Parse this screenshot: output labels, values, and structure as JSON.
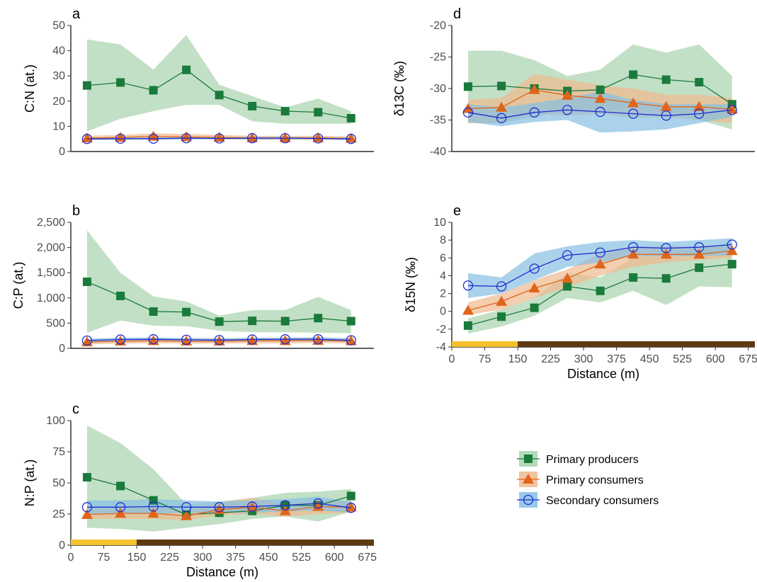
{
  "colors": {
    "producers": "#1a7a3c",
    "producers_band": "#a8d3ad",
    "consumers": "#e0651a",
    "consumers_band": "#f0b98f",
    "secondary": "#1f2fd1",
    "secondary_band": "#86bfe3",
    "bar_light": "#f5c12c",
    "bar_dark": "#5e3a13"
  },
  "x_axis": {
    "label": "Distance (m)",
    "ticks": [
      0,
      75,
      150,
      225,
      300,
      375,
      450,
      525,
      600,
      675
    ],
    "xlim": [
      0,
      690
    ]
  },
  "legend": [
    {
      "key": "producers",
      "label": "Primary producers",
      "marker": "square"
    },
    {
      "key": "consumers",
      "label": "Primary consumers",
      "marker": "triangle"
    },
    {
      "key": "secondary",
      "label": "Secondary consumers",
      "marker": "circle"
    }
  ],
  "chart_data": [
    {
      "id": "a",
      "letter": "a",
      "type": "line",
      "ylabel": "C:N (at.)",
      "ylim": [
        0,
        50
      ],
      "yticks": [
        0,
        10,
        20,
        30,
        40,
        50
      ],
      "yticklabels": [
        "0",
        "10",
        "20",
        "30",
        "40",
        "50"
      ],
      "show_x_axis": false,
      "x": [
        37,
        113,
        188,
        263,
        338,
        413,
        488,
        563,
        638
      ],
      "series": [
        {
          "key": "producers",
          "name": "Primary producers",
          "values": [
            26.2,
            27.4,
            24.3,
            32.4,
            22.4,
            18.0,
            16.0,
            15.6,
            13.2
          ],
          "lower": [
            8,
            13,
            16,
            18.5,
            18.5,
            12,
            11,
            11,
            11
          ],
          "upper": [
            44.5,
            42.5,
            32.5,
            46.2,
            26.5,
            22,
            17.5,
            21,
            16
          ]
        },
        {
          "key": "consumers",
          "name": "Primary consumers",
          "values": [
            5.3,
            5.6,
            6.0,
            5.8,
            5.6,
            5.4,
            5.4,
            5.4,
            5.2
          ],
          "lower": [
            4.6,
            4.6,
            4.8,
            4.8,
            4.8,
            4.6,
            4.6,
            4.6,
            4.6
          ],
          "upper": [
            6.2,
            6.6,
            7.2,
            7.0,
            6.6,
            6.2,
            6.2,
            6.2,
            6.0
          ]
        },
        {
          "key": "secondary",
          "name": "Secondary consumers",
          "values": [
            5.0,
            5.1,
            5.1,
            5.3,
            5.2,
            5.3,
            5.3,
            5.2,
            5.0
          ],
          "lower": [
            4.6,
            4.7,
            4.7,
            4.8,
            4.8,
            4.8,
            4.8,
            4.8,
            4.6
          ],
          "upper": [
            5.4,
            5.5,
            5.5,
            5.8,
            5.6,
            5.8,
            5.8,
            5.6,
            5.4
          ]
        }
      ]
    },
    {
      "id": "b",
      "letter": "b",
      "type": "line",
      "ylabel": "C:P (at.)",
      "ylim": [
        0,
        2500
      ],
      "yticks": [
        0,
        500,
        1000,
        1500,
        2000,
        2500
      ],
      "yticklabels": [
        "0",
        "500",
        "1,000",
        "1,500",
        "2,000",
        "2,500"
      ],
      "show_x_axis": false,
      "x": [
        37,
        113,
        188,
        263,
        338,
        413,
        488,
        563,
        638
      ],
      "series": [
        {
          "key": "producers",
          "name": "Primary producers",
          "values": [
            1320,
            1040,
            730,
            720,
            530,
            545,
            540,
            600,
            540
          ],
          "lower": [
            310,
            550,
            450,
            440,
            350,
            320,
            320,
            310,
            300
          ],
          "upper": [
            2340,
            1500,
            1030,
            930,
            650,
            760,
            760,
            1020,
            760
          ]
        },
        {
          "key": "consumers",
          "name": "Primary consumers",
          "values": [
            125,
            140,
            150,
            140,
            140,
            150,
            150,
            155,
            145
          ],
          "lower": [
            80,
            95,
            100,
            95,
            95,
            100,
            100,
            105,
            95
          ],
          "upper": [
            175,
            190,
            200,
            190,
            190,
            200,
            200,
            210,
            200
          ]
        },
        {
          "key": "secondary",
          "name": "Secondary consumers",
          "values": [
            155,
            175,
            180,
            170,
            165,
            175,
            180,
            180,
            160
          ],
          "lower": [
            120,
            140,
            145,
            135,
            130,
            140,
            145,
            145,
            125
          ],
          "upper": [
            190,
            210,
            215,
            205,
            200,
            210,
            215,
            220,
            200
          ]
        }
      ]
    },
    {
      "id": "c",
      "letter": "c",
      "type": "line",
      "ylabel": "N:P (at.)",
      "ylim": [
        0,
        100
      ],
      "yticks": [
        0,
        25,
        50,
        75,
        100
      ],
      "yticklabels": [
        "0",
        "25",
        "50",
        "75",
        "100"
      ],
      "show_x_axis": true,
      "x": [
        37,
        113,
        188,
        263,
        338,
        413,
        488,
        563,
        638
      ],
      "series": [
        {
          "key": "producers",
          "name": "Primary producers",
          "values": [
            54.5,
            47.5,
            36.0,
            24.5,
            26.0,
            27.5,
            32.0,
            32.0,
            39.5
          ],
          "lower": [
            14,
            13,
            11,
            14,
            17,
            21,
            23,
            19,
            27
          ],
          "upper": [
            96,
            82,
            61,
            33,
            35,
            38,
            42,
            43,
            45
          ]
        },
        {
          "key": "consumers",
          "name": "Primary consumers",
          "values": [
            24.5,
            25.5,
            25.5,
            23.5,
            28.5,
            30.5,
            27.5,
            31.0,
            30.5
          ],
          "lower": [
            21,
            21,
            21,
            20,
            24,
            25,
            23,
            25,
            26
          ],
          "upper": [
            29,
            30,
            30,
            28,
            34,
            38,
            33,
            36,
            35
          ]
        },
        {
          "key": "secondary",
          "name": "Secondary consumers",
          "values": [
            30.5,
            30.5,
            31.0,
            30.5,
            30.5,
            31.0,
            32.0,
            33.5,
            30.0
          ],
          "lower": [
            25,
            25,
            25,
            26,
            26,
            26,
            27,
            28,
            26
          ],
          "upper": [
            36,
            36,
            37,
            36,
            35,
            36,
            37,
            39,
            35
          ]
        }
      ]
    },
    {
      "id": "d",
      "letter": "d",
      "type": "line",
      "ylabel": "δ13C (‰)",
      "ylim": [
        -40,
        -20
      ],
      "yticks": [
        -40,
        -35,
        -30,
        -25,
        -20
      ],
      "yticklabels": [
        "-40",
        "-35",
        "-30",
        "-25",
        "-20"
      ],
      "show_x_axis": false,
      "x": [
        37,
        113,
        188,
        263,
        338,
        413,
        488,
        563,
        638
      ],
      "series": [
        {
          "key": "producers",
          "name": "Primary producers",
          "values": [
            -29.7,
            -29.6,
            -30.0,
            -30.4,
            -30.2,
            -27.8,
            -28.6,
            -29.0,
            -32.5
          ],
          "lower": [
            -35.5,
            -35.5,
            -34.5,
            -33.5,
            -33.5,
            -33.0,
            -33.5,
            -35.0,
            -36.5
          ],
          "upper": [
            -24.0,
            -24.0,
            -25.5,
            -28.0,
            -27.0,
            -23.0,
            -24.3,
            -23.0,
            -28.0
          ]
        },
        {
          "key": "consumers",
          "name": "Primary consumers",
          "values": [
            -33.2,
            -33.0,
            -30.2,
            -31.1,
            -31.6,
            -32.3,
            -32.9,
            -32.9,
            -33.3
          ],
          "lower": [
            -35.5,
            -35.3,
            -34.0,
            -34.3,
            -34.0,
            -34.6,
            -34.6,
            -35.0,
            -35.5
          ],
          "upper": [
            -31.8,
            -31.5,
            -27.7,
            -28.6,
            -29.5,
            -30.0,
            -31.0,
            -31.0,
            -31.5
          ]
        },
        {
          "key": "secondary",
          "name": "Secondary consumers",
          "values": [
            -33.8,
            -34.7,
            -33.8,
            -33.4,
            -33.7,
            -34.0,
            -34.3,
            -34.0,
            -33.4
          ],
          "lower": [
            -35.3,
            -36.0,
            -35.3,
            -35.0,
            -37.0,
            -36.8,
            -36.5,
            -35.5,
            -34.5
          ],
          "upper": [
            -32.5,
            -33.0,
            -32.3,
            -31.5,
            -30.5,
            -31.8,
            -32.5,
            -32.5,
            -32.5
          ]
        }
      ]
    },
    {
      "id": "e",
      "letter": "e",
      "type": "line",
      "ylabel": "δ15N (‰)",
      "ylim": [
        -4,
        10
      ],
      "yticks": [
        -4,
        -2,
        0,
        2,
        4,
        6,
        8,
        10
      ],
      "yticklabels": [
        "-4",
        "-2",
        "0",
        "2",
        "4",
        "6",
        "8",
        "10"
      ],
      "show_x_axis": true,
      "x": [
        37,
        113,
        188,
        263,
        338,
        413,
        488,
        563,
        638
      ],
      "series": [
        {
          "key": "producers",
          "name": "Primary producers",
          "values": [
            -1.6,
            -0.6,
            0.4,
            2.8,
            2.3,
            3.8,
            3.7,
            4.9,
            5.3
          ],
          "lower": [
            -2.5,
            -1.7,
            -0.5,
            1.5,
            1.0,
            2.3,
            0.7,
            2.8,
            2.7
          ],
          "upper": [
            -0.8,
            0.2,
            1.5,
            4.3,
            3.8,
            6.0,
            6.7,
            7.0,
            7.8
          ]
        },
        {
          "key": "consumers",
          "name": "Primary consumers",
          "values": [
            0.1,
            1.1,
            2.6,
            3.7,
            5.3,
            6.4,
            6.4,
            6.4,
            6.8
          ],
          "lower": [
            -0.4,
            0.2,
            1.5,
            2.7,
            4.0,
            5.0,
            5.5,
            5.8,
            6.0
          ],
          "upper": [
            1.0,
            2.0,
            3.5,
            4.7,
            6.5,
            7.3,
            7.3,
            7.3,
            7.5
          ]
        },
        {
          "key": "secondary",
          "name": "Secondary consumers",
          "values": [
            2.9,
            2.8,
            4.8,
            6.3,
            6.6,
            7.2,
            7.1,
            7.2,
            7.5
          ],
          "lower": [
            1.5,
            2.0,
            3.5,
            5.0,
            5.5,
            6.2,
            6.2,
            6.2,
            6.3
          ],
          "upper": [
            4.3,
            3.8,
            6.5,
            7.3,
            7.8,
            8.0,
            7.8,
            8.0,
            8.2
          ]
        }
      ]
    }
  ],
  "habitat_bar": [
    {
      "from": 0,
      "to": 150,
      "key": "bar_light"
    },
    {
      "from": 150,
      "to": 690,
      "key": "bar_dark"
    }
  ]
}
